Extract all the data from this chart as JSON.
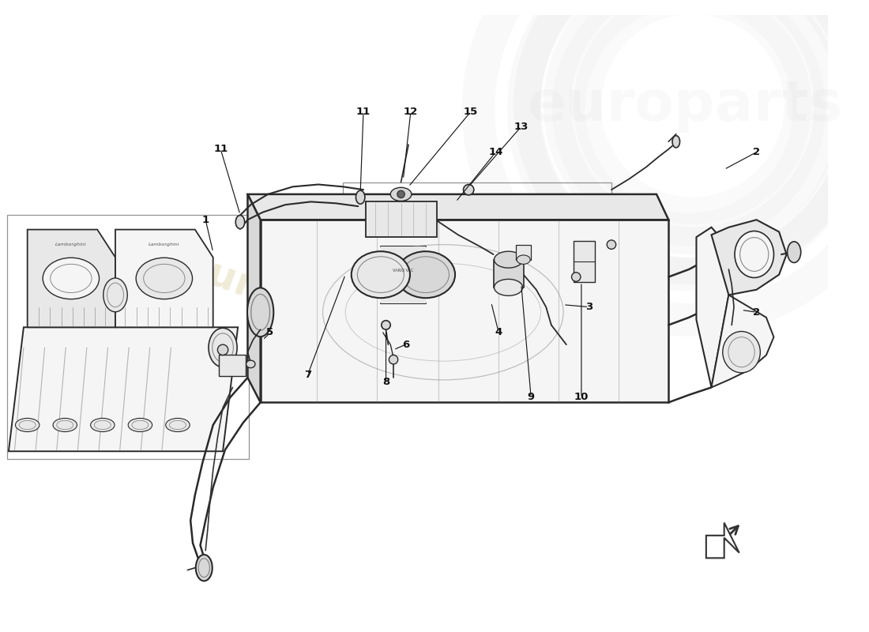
{
  "background_color": "#ffffff",
  "fig_width": 11.0,
  "fig_height": 8.0,
  "line_color": "#2a2a2a",
  "light_line": "#888888",
  "dashed_color": "#666666",
  "fill_light": "#f5f5f5",
  "fill_medium": "#e8e8e8",
  "fill_dark": "#d8d8d8",
  "watermark_color": "#d4c88a",
  "watermark_alpha": 0.45,
  "logo_color": "#c8c8c8",
  "logo_alpha": 0.18,
  "part_labels": [
    [
      "1",
      2.72,
      5.28
    ],
    [
      "2",
      10.05,
      6.18
    ],
    [
      "2",
      10.05,
      4.05
    ],
    [
      "3",
      7.82,
      4.12
    ],
    [
      "4",
      6.62,
      3.78
    ],
    [
      "5",
      3.58,
      3.78
    ],
    [
      "6",
      5.38,
      3.62
    ],
    [
      "7",
      4.08,
      3.22
    ],
    [
      "8",
      5.12,
      3.12
    ],
    [
      "9",
      7.05,
      2.92
    ],
    [
      "10",
      7.72,
      2.92
    ],
    [
      "11",
      2.92,
      6.22
    ],
    [
      "11",
      4.82,
      6.72
    ],
    [
      "12",
      5.45,
      6.72
    ],
    [
      "13",
      6.92,
      6.52
    ],
    [
      "14",
      6.58,
      6.18
    ],
    [
      "15",
      6.25,
      6.72
    ]
  ]
}
